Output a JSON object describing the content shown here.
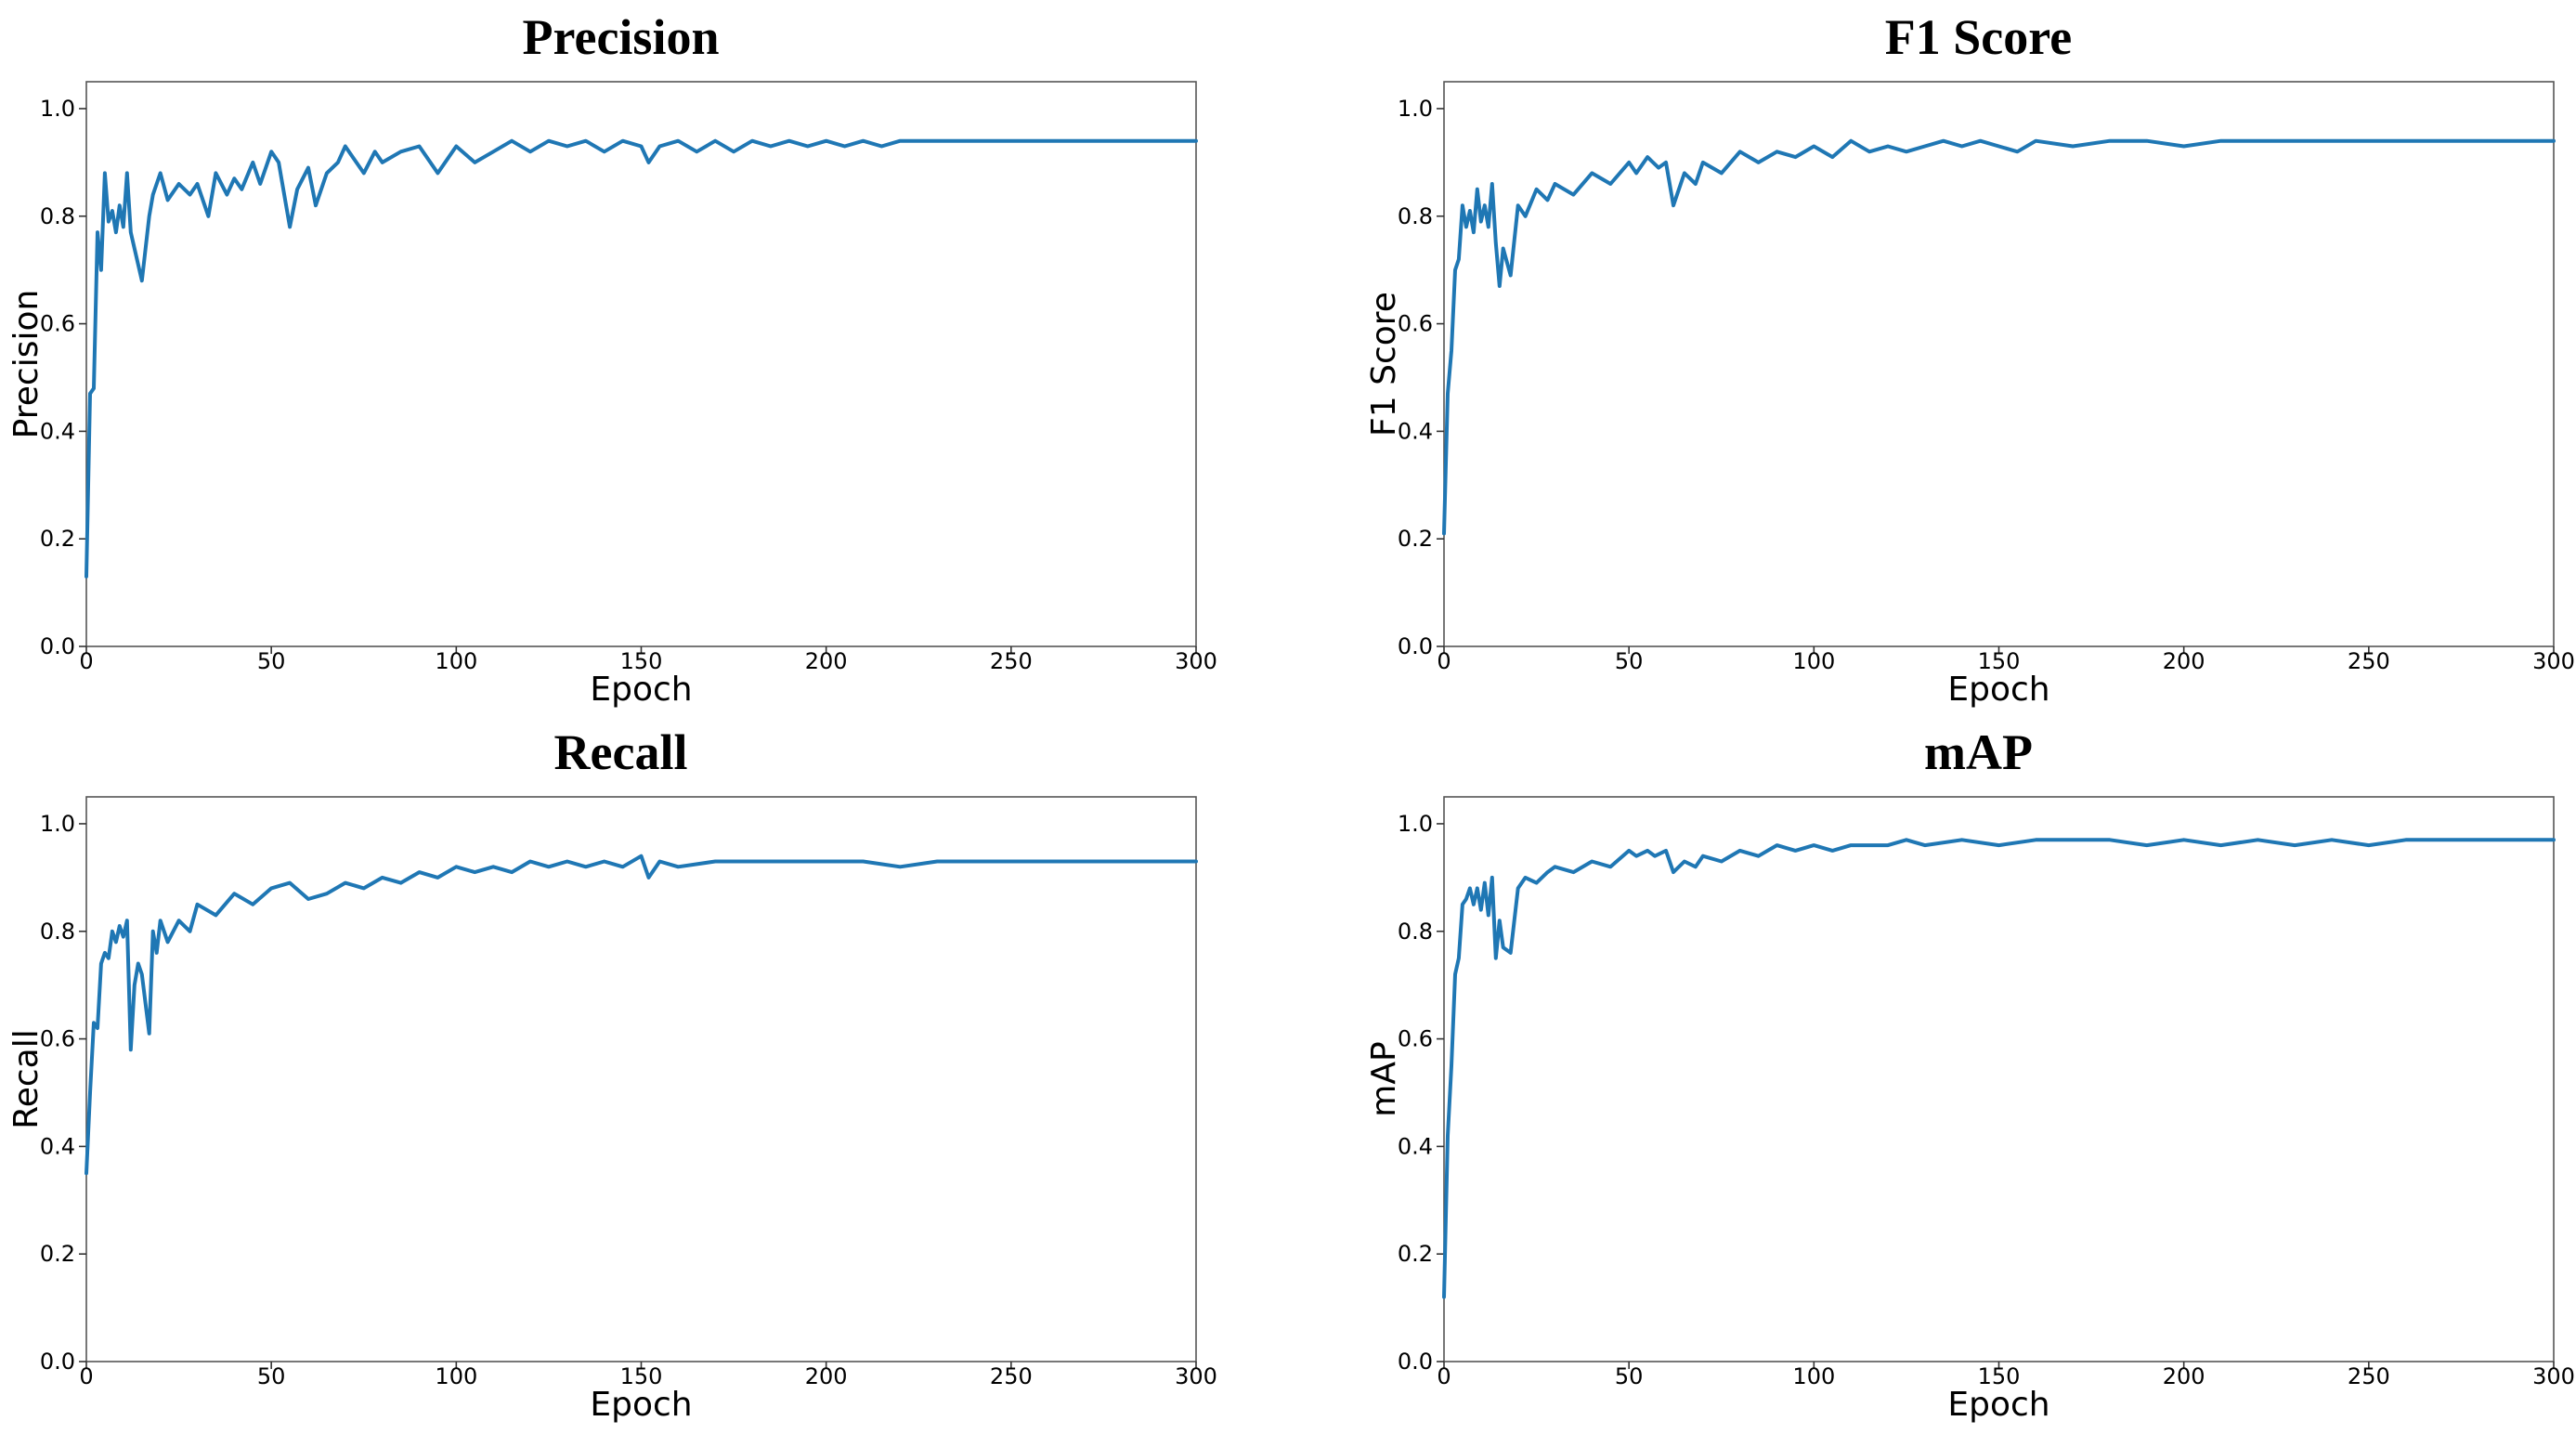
{
  "colors": {
    "line": "#1f77b4",
    "background": "#ffffff"
  },
  "chart_data": [
    {
      "type": "line",
      "title": "Precision",
      "xlabel": "Epoch",
      "ylabel": "Precision",
      "xlim": [
        0,
        300
      ],
      "ylim": [
        0,
        1.05
      ],
      "xticks": [
        0,
        50,
        100,
        150,
        200,
        250,
        300
      ],
      "yticks": [
        0.0,
        0.2,
        0.4,
        0.6,
        0.8,
        1.0
      ],
      "ytick_labels": [
        "0.0",
        "0.2",
        "0.4",
        "0.6",
        "0.8",
        "1.0"
      ],
      "series": [
        {
          "name": "Precision",
          "x": [
            0,
            1,
            2,
            3,
            4,
            5,
            6,
            7,
            8,
            9,
            10,
            11,
            12,
            13,
            15,
            17,
            18,
            20,
            22,
            25,
            28,
            30,
            33,
            35,
            38,
            40,
            42,
            45,
            47,
            50,
            52,
            55,
            57,
            60,
            62,
            65,
            68,
            70,
            72,
            75,
            78,
            80,
            85,
            90,
            95,
            100,
            105,
            110,
            115,
            120,
            125,
            130,
            135,
            140,
            145,
            150,
            152,
            155,
            160,
            165,
            170,
            175,
            180,
            185,
            190,
            195,
            200,
            205,
            210,
            215,
            220,
            230,
            240,
            250,
            260,
            270,
            280,
            290,
            300
          ],
          "y": [
            0.13,
            0.47,
            0.48,
            0.77,
            0.7,
            0.88,
            0.79,
            0.81,
            0.77,
            0.82,
            0.78,
            0.88,
            0.77,
            0.74,
            0.68,
            0.8,
            0.84,
            0.88,
            0.83,
            0.86,
            0.84,
            0.86,
            0.8,
            0.88,
            0.84,
            0.87,
            0.85,
            0.9,
            0.86,
            0.92,
            0.9,
            0.78,
            0.85,
            0.89,
            0.82,
            0.88,
            0.9,
            0.93,
            0.91,
            0.88,
            0.92,
            0.9,
            0.92,
            0.93,
            0.88,
            0.93,
            0.9,
            0.92,
            0.94,
            0.92,
            0.94,
            0.93,
            0.94,
            0.92,
            0.94,
            0.93,
            0.9,
            0.93,
            0.94,
            0.92,
            0.94,
            0.92,
            0.94,
            0.93,
            0.94,
            0.93,
            0.94,
            0.93,
            0.94,
            0.93,
            0.94,
            0.94,
            0.94,
            0.94,
            0.94,
            0.94,
            0.94,
            0.94,
            0.94
          ]
        }
      ]
    },
    {
      "type": "line",
      "title": "F1 Score",
      "xlabel": "Epoch",
      "ylabel": "F1 Score",
      "xlim": [
        0,
        300
      ],
      "ylim": [
        0,
        1.05
      ],
      "xticks": [
        0,
        50,
        100,
        150,
        200,
        250,
        300
      ],
      "yticks": [
        0.0,
        0.2,
        0.4,
        0.6,
        0.8,
        1.0
      ],
      "ytick_labels": [
        "0.0",
        "0.2",
        "0.4",
        "0.6",
        "0.8",
        "1.0"
      ],
      "series": [
        {
          "name": "F1 Score",
          "x": [
            0,
            1,
            2,
            3,
            4,
            5,
            6,
            7,
            8,
            9,
            10,
            11,
            12,
            13,
            14,
            15,
            16,
            18,
            20,
            22,
            25,
            28,
            30,
            35,
            40,
            45,
            50,
            52,
            55,
            58,
            60,
            62,
            65,
            68,
            70,
            75,
            80,
            85,
            90,
            95,
            100,
            105,
            110,
            115,
            120,
            125,
            130,
            135,
            140,
            145,
            150,
            155,
            160,
            170,
            180,
            190,
            200,
            210,
            220,
            230,
            240,
            250,
            260,
            270,
            280,
            290,
            300
          ],
          "y": [
            0.21,
            0.47,
            0.55,
            0.7,
            0.72,
            0.82,
            0.78,
            0.81,
            0.77,
            0.85,
            0.79,
            0.82,
            0.78,
            0.86,
            0.75,
            0.67,
            0.74,
            0.69,
            0.82,
            0.8,
            0.85,
            0.83,
            0.86,
            0.84,
            0.88,
            0.86,
            0.9,
            0.88,
            0.91,
            0.89,
            0.9,
            0.82,
            0.88,
            0.86,
            0.9,
            0.88,
            0.92,
            0.9,
            0.92,
            0.91,
            0.93,
            0.91,
            0.94,
            0.92,
            0.93,
            0.92,
            0.93,
            0.94,
            0.93,
            0.94,
            0.93,
            0.92,
            0.94,
            0.93,
            0.94,
            0.94,
            0.93,
            0.94,
            0.94,
            0.94,
            0.94,
            0.94,
            0.94,
            0.94,
            0.94,
            0.94,
            0.94
          ]
        }
      ]
    },
    {
      "type": "line",
      "title": "Recall",
      "xlabel": "Epoch",
      "ylabel": "Recall",
      "xlim": [
        0,
        300
      ],
      "ylim": [
        0,
        1.05
      ],
      "xticks": [
        0,
        50,
        100,
        150,
        200,
        250,
        300
      ],
      "yticks": [
        0.0,
        0.2,
        0.4,
        0.6,
        0.8,
        1.0
      ],
      "ytick_labels": [
        "0.0",
        "0.2",
        "0.4",
        "0.6",
        "0.8",
        "1.0"
      ],
      "series": [
        {
          "name": "Recall",
          "x": [
            0,
            1,
            2,
            3,
            4,
            5,
            6,
            7,
            8,
            9,
            10,
            11,
            12,
            13,
            14,
            15,
            17,
            18,
            19,
            20,
            22,
            25,
            28,
            30,
            35,
            40,
            45,
            50,
            55,
            60,
            65,
            70,
            75,
            80,
            85,
            90,
            95,
            100,
            105,
            110,
            115,
            120,
            125,
            130,
            135,
            140,
            145,
            150,
            152,
            155,
            160,
            170,
            180,
            190,
            200,
            210,
            220,
            230,
            240,
            250,
            260,
            270,
            280,
            290,
            300
          ],
          "y": [
            0.35,
            0.5,
            0.63,
            0.62,
            0.74,
            0.76,
            0.75,
            0.8,
            0.78,
            0.81,
            0.79,
            0.82,
            0.58,
            0.7,
            0.74,
            0.72,
            0.61,
            0.8,
            0.76,
            0.82,
            0.78,
            0.82,
            0.8,
            0.85,
            0.83,
            0.87,
            0.85,
            0.88,
            0.89,
            0.86,
            0.87,
            0.89,
            0.88,
            0.9,
            0.89,
            0.91,
            0.9,
            0.92,
            0.91,
            0.92,
            0.91,
            0.93,
            0.92,
            0.93,
            0.92,
            0.93,
            0.92,
            0.94,
            0.9,
            0.93,
            0.92,
            0.93,
            0.93,
            0.93,
            0.93,
            0.93,
            0.92,
            0.93,
            0.93,
            0.93,
            0.93,
            0.93,
            0.93,
            0.93,
            0.93
          ]
        }
      ]
    },
    {
      "type": "line",
      "title": "mAP",
      "xlabel": "Epoch",
      "ylabel": "mAP",
      "xlim": [
        0,
        300
      ],
      "ylim": [
        0,
        1.05
      ],
      "xticks": [
        0,
        50,
        100,
        150,
        200,
        250,
        300
      ],
      "yticks": [
        0.0,
        0.2,
        0.4,
        0.6,
        0.8,
        1.0
      ],
      "ytick_labels": [
        "0.0",
        "0.2",
        "0.4",
        "0.6",
        "0.8",
        "1.0"
      ],
      "series": [
        {
          "name": "mAP",
          "x": [
            0,
            1,
            2,
            3,
            4,
            5,
            6,
            7,
            8,
            9,
            10,
            11,
            12,
            13,
            14,
            15,
            16,
            18,
            20,
            22,
            25,
            28,
            30,
            35,
            40,
            45,
            50,
            52,
            55,
            57,
            60,
            62,
            65,
            68,
            70,
            75,
            80,
            85,
            90,
            95,
            100,
            105,
            110,
            115,
            120,
            125,
            130,
            140,
            150,
            160,
            170,
            180,
            190,
            200,
            210,
            220,
            230,
            240,
            250,
            260,
            270,
            280,
            290,
            300
          ],
          "y": [
            0.12,
            0.42,
            0.55,
            0.72,
            0.75,
            0.85,
            0.86,
            0.88,
            0.85,
            0.88,
            0.84,
            0.89,
            0.83,
            0.9,
            0.75,
            0.82,
            0.77,
            0.76,
            0.88,
            0.9,
            0.89,
            0.91,
            0.92,
            0.91,
            0.93,
            0.92,
            0.95,
            0.94,
            0.95,
            0.94,
            0.95,
            0.91,
            0.93,
            0.92,
            0.94,
            0.93,
            0.95,
            0.94,
            0.96,
            0.95,
            0.96,
            0.95,
            0.96,
            0.96,
            0.96,
            0.97,
            0.96,
            0.97,
            0.96,
            0.97,
            0.97,
            0.97,
            0.96,
            0.97,
            0.96,
            0.97,
            0.96,
            0.97,
            0.96,
            0.97,
            0.97,
            0.97,
            0.97,
            0.97
          ]
        }
      ]
    }
  ]
}
